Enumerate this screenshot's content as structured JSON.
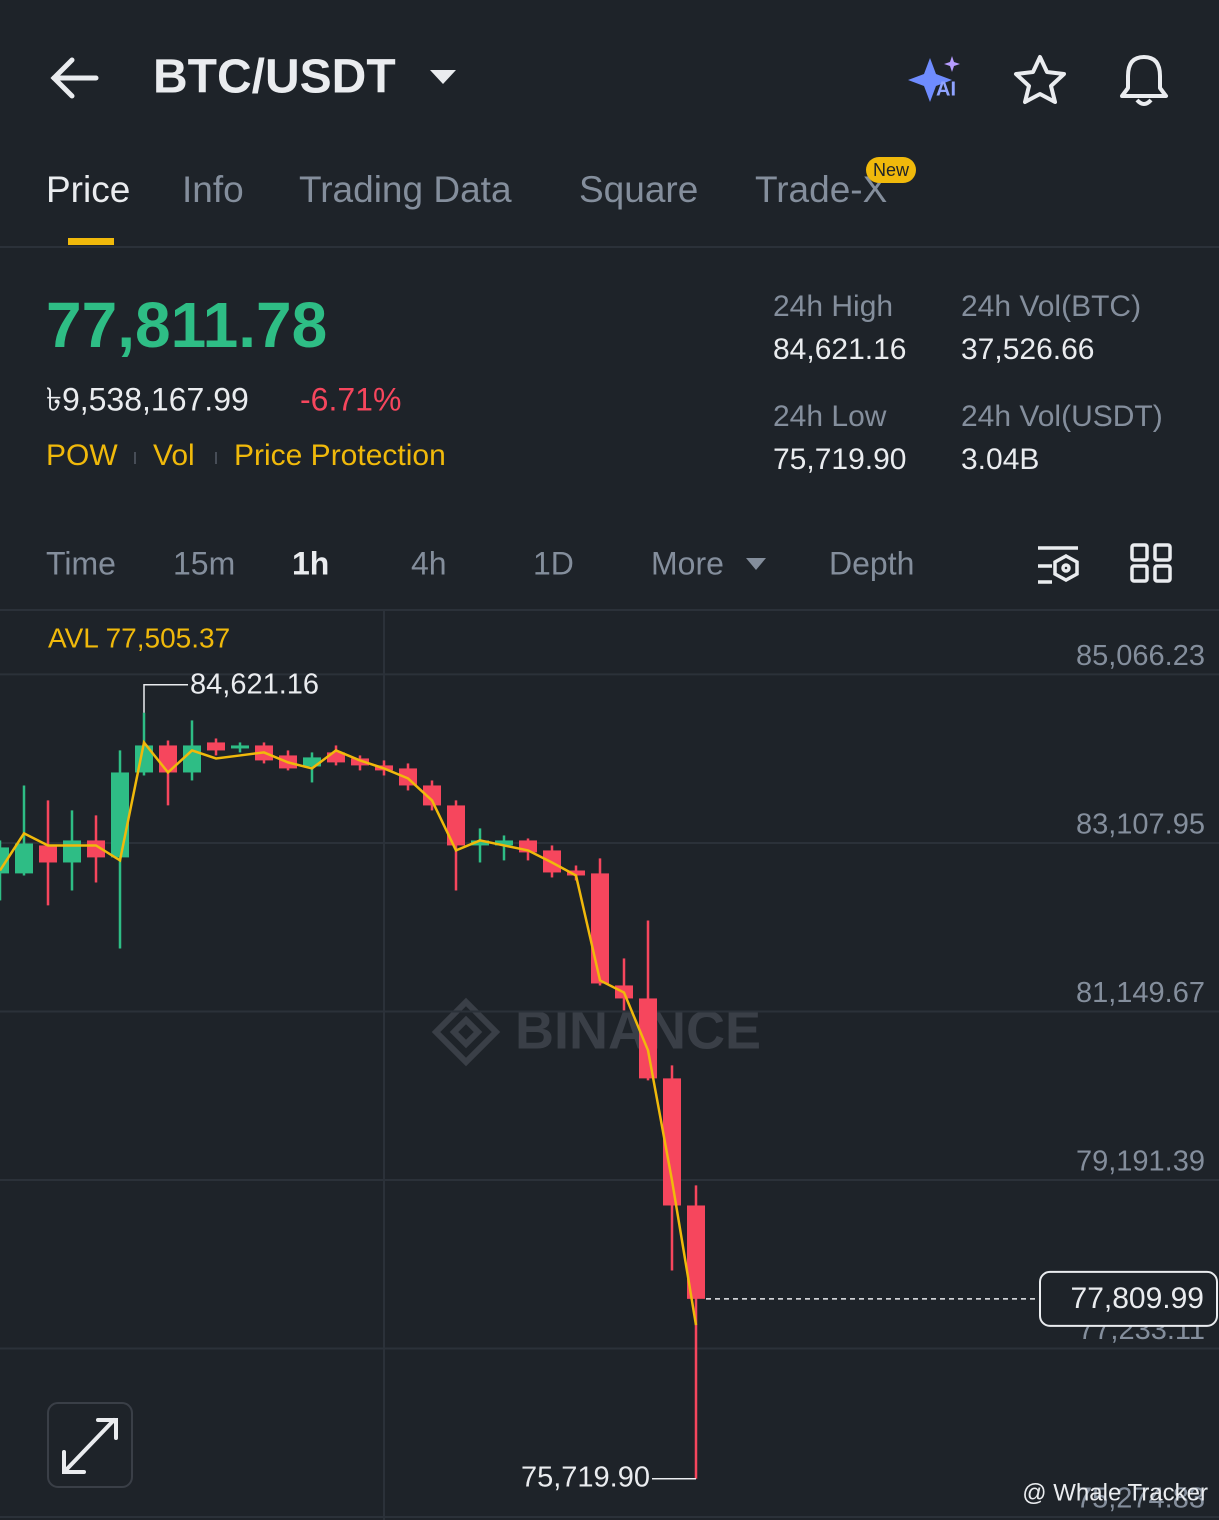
{
  "header": {
    "title": "BTC/USDT"
  },
  "tabs": [
    "Price",
    "Info",
    "Trading Data",
    "Square",
    "Trade-X"
  ],
  "tab_badge": "New",
  "summary": {
    "price": "77,811.78",
    "fiat_price": "৳9,538,167.99",
    "change": "-6.71%",
    "tags": [
      "POW",
      "Vol",
      "Price Protection"
    ],
    "stats": [
      {
        "label": "24h High",
        "value": "84,621.16"
      },
      {
        "label": "24h Vol(BTC)",
        "value": "37,526.66"
      },
      {
        "label": "24h Low",
        "value": "75,719.90"
      },
      {
        "label": "24h Vol(USDT)",
        "value": "3.04B"
      }
    ]
  },
  "intervals": [
    "Time",
    "15m",
    "1h",
    "4h",
    "1D",
    "More",
    "Depth"
  ],
  "chart_data": {
    "type": "candlestick",
    "up_color": "#2ebd85",
    "down_color": "#f6465d",
    "open": [
      82754,
      82754,
      83079,
      82881,
      83137,
      82940,
      83927,
      84241,
      83927,
      84276,
      84206,
      84241,
      84125,
      83997,
      84160,
      84090,
      84009,
      83974,
      83776,
      83544,
      83079,
      83079,
      83137,
      83021,
      82788,
      82754,
      81452,
      81301,
      80372,
      78895
    ],
    "high": [
      83137,
      83776,
      83602,
      83486,
      83428,
      84183,
      84621.16,
      84299,
      84532,
      84322,
      84276,
      84276,
      84183,
      84160,
      84241,
      84125,
      84067,
      84032,
      83834,
      83602,
      83277,
      83195,
      83160,
      83079,
      82846,
      82928,
      81766,
      82207,
      80523,
      79128
    ],
    "low": [
      82440,
      82730,
      82382,
      82556,
      82649,
      81882,
      83892,
      83544,
      83834,
      84125,
      84160,
      84032,
      83951,
      83811,
      84009,
      83951,
      83892,
      83718,
      83486,
      82556,
      82881,
      82905,
      82905,
      82707,
      82672,
      81452,
      81162,
      80349,
      78140,
      75719.9
    ],
    "close": [
      83056,
      83102,
      82881,
      83137,
      82940,
      83927,
      84241,
      83927,
      84241,
      84183,
      84241,
      84067,
      83974,
      84102,
      84044,
      84009,
      83951,
      83776,
      83544,
      83079,
      83137,
      83137,
      82998,
      82765,
      82730,
      81475,
      81301,
      80372,
      78895,
      77809.99
    ],
    "line": {
      "color": "#f0b90b",
      "values": [
        82788,
        83219,
        83079,
        83079,
        83079,
        82905,
        84276,
        83927,
        84183,
        84090,
        84125,
        84160,
        84044,
        83974,
        84183,
        84067,
        83974,
        83858,
        83602,
        83021,
        83137,
        83079,
        83021,
        82881,
        82730,
        81510,
        81370,
        80698,
        79186,
        77505.37
      ]
    },
    "avl_label": "AVL 77,505.37",
    "ylim": [
      75240,
      85815
    ],
    "yticks": [
      {
        "value": 85066.23,
        "label": "85,066.23"
      },
      {
        "value": 83107.95,
        "label": "83,107.95"
      },
      {
        "value": 81149.67,
        "label": "81,149.67"
      },
      {
        "value": 79191.39,
        "label": "79,191.39"
      },
      {
        "value": 77233.11,
        "label": "77,233.11"
      },
      {
        "value": 75274.83,
        "label": "75,274.83"
      }
    ],
    "grid": true,
    "high_annotation": {
      "value": 84621.16,
      "label": "84,621.16"
    },
    "low_annotation": {
      "value": 75719.9,
      "label": "75,719.90"
    },
    "last_price": {
      "value": 77809.99,
      "label": "77,809.99"
    }
  },
  "watermark": "BINANCE",
  "credit": "@ Whale Tracker"
}
